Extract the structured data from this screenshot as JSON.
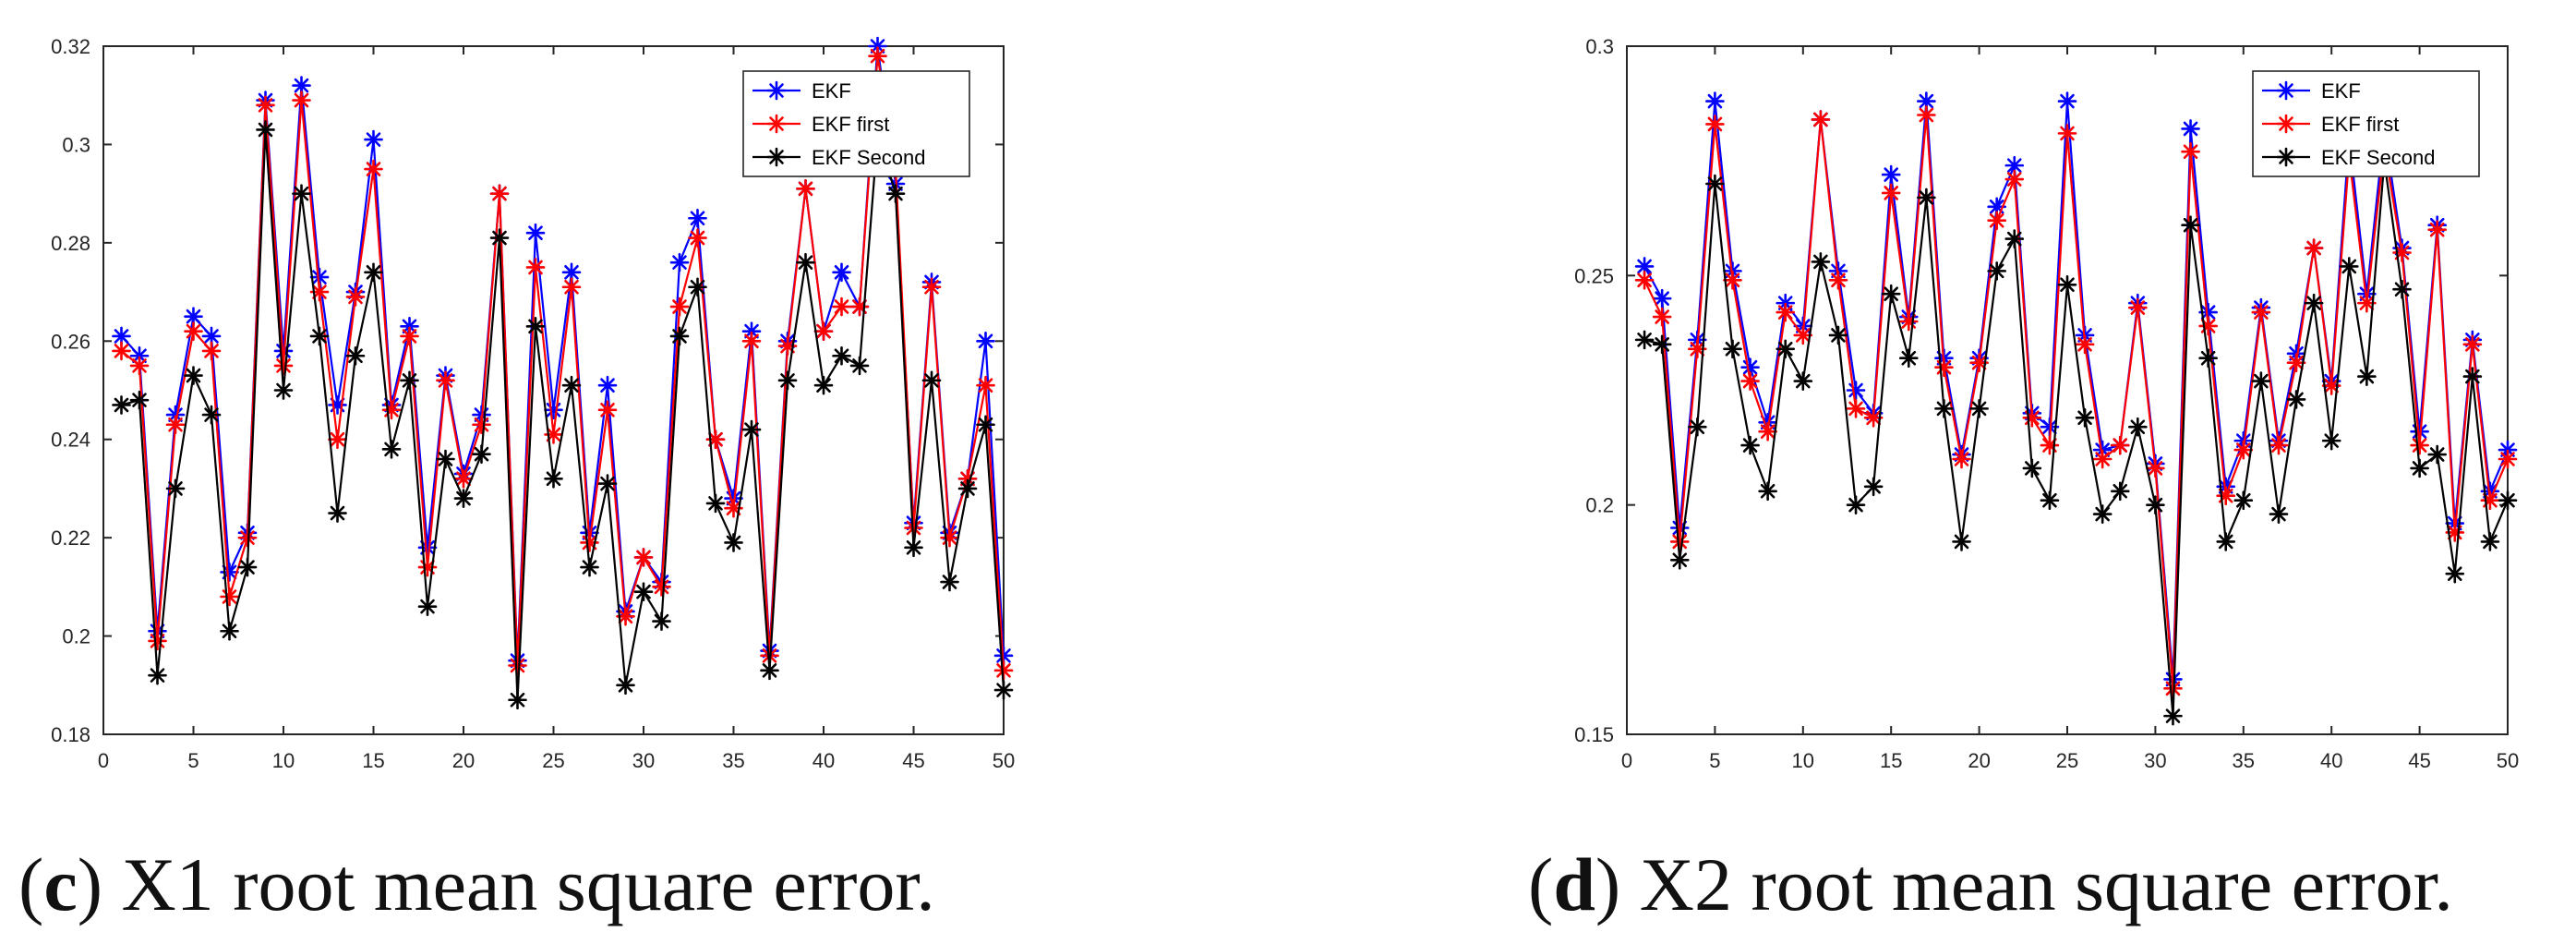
{
  "chart_data": [
    {
      "type": "line",
      "caption": {
        "letter": "c",
        "text": "X1 root mean square error."
      },
      "x": [
        1,
        2,
        3,
        4,
        5,
        6,
        7,
        8,
        9,
        10,
        11,
        12,
        13,
        14,
        15,
        16,
        17,
        18,
        19,
        20,
        21,
        22,
        23,
        24,
        25,
        26,
        27,
        28,
        29,
        30,
        31,
        32,
        33,
        34,
        35,
        36,
        37,
        38,
        39,
        40,
        41,
        42,
        43,
        44,
        45,
        46,
        47,
        48,
        49,
        50
      ],
      "xlim": [
        0,
        50
      ],
      "ylim": [
        0.18,
        0.32
      ],
      "xticks": [
        0,
        5,
        10,
        15,
        20,
        25,
        30,
        35,
        40,
        45,
        50
      ],
      "yticks": [
        0.18,
        0.2,
        0.22,
        0.24,
        0.26,
        0.28,
        0.3,
        0.32
      ],
      "xtick_labels": [
        "0",
        "5",
        "10",
        "15",
        "20",
        "25",
        "30",
        "35",
        "40",
        "45",
        "50"
      ],
      "ytick_labels": [
        "0.18",
        "0.2",
        "0.22",
        "0.24",
        "0.26",
        "0.28",
        "0.3",
        "0.32"
      ],
      "legend_position": "top-right",
      "series": [
        {
          "name": "EKF",
          "color": "#0000ff",
          "values": [
            0.261,
            0.257,
            0.201,
            0.245,
            0.265,
            0.261,
            0.213,
            0.221,
            0.309,
            0.258,
            0.312,
            0.273,
            0.247,
            0.27,
            0.301,
            0.247,
            0.263,
            0.218,
            0.253,
            0.233,
            0.245,
            0.29,
            0.195,
            0.282,
            0.246,
            0.274,
            0.221,
            0.251,
            0.205,
            0.216,
            0.211,
            0.276,
            0.285,
            0.24,
            0.228,
            0.262,
            0.197,
            0.26,
            0.291,
            0.262,
            0.274,
            0.267,
            0.32,
            0.292,
            0.223,
            0.272,
            0.221,
            0.232,
            0.26,
            0.196
          ]
        },
        {
          "name": "EKF first",
          "color": "#ff0000",
          "values": [
            0.258,
            0.255,
            0.199,
            0.243,
            0.262,
            0.258,
            0.208,
            0.22,
            0.308,
            0.255,
            0.309,
            0.27,
            0.24,
            0.269,
            0.295,
            0.246,
            0.261,
            0.214,
            0.252,
            0.232,
            0.243,
            0.29,
            0.194,
            0.275,
            0.241,
            0.271,
            0.219,
            0.246,
            0.204,
            0.216,
            0.21,
            0.267,
            0.281,
            0.24,
            0.226,
            0.26,
            0.196,
            0.259,
            0.291,
            0.262,
            0.267,
            0.267,
            0.318,
            0.295,
            0.222,
            0.271,
            0.22,
            0.232,
            0.251,
            0.193
          ]
        },
        {
          "name": "EKF Second",
          "color": "#000000",
          "values": [
            0.247,
            0.248,
            0.192,
            0.23,
            0.253,
            0.245,
            0.201,
            0.214,
            0.303,
            0.25,
            0.29,
            0.261,
            0.225,
            0.257,
            0.274,
            0.238,
            0.252,
            0.206,
            0.236,
            0.228,
            0.237,
            0.281,
            0.187,
            0.263,
            0.232,
            0.251,
            0.214,
            0.231,
            0.19,
            0.209,
            0.203,
            0.261,
            0.271,
            0.227,
            0.219,
            0.242,
            0.193,
            0.252,
            0.276,
            0.251,
            0.257,
            0.255,
            0.302,
            0.29,
            0.218,
            0.252,
            0.211,
            0.23,
            0.243,
            0.189
          ]
        }
      ]
    },
    {
      "type": "line",
      "caption": {
        "letter": "d",
        "text": "X2 root mean square error."
      },
      "x": [
        1,
        2,
        3,
        4,
        5,
        6,
        7,
        8,
        9,
        10,
        11,
        12,
        13,
        14,
        15,
        16,
        17,
        18,
        19,
        20,
        21,
        22,
        23,
        24,
        25,
        26,
        27,
        28,
        29,
        30,
        31,
        32,
        33,
        34,
        35,
        36,
        37,
        38,
        39,
        40,
        41,
        42,
        43,
        44,
        45,
        46,
        47,
        48,
        49,
        50
      ],
      "xlim": [
        0,
        50
      ],
      "ylim": [
        0.15,
        0.3
      ],
      "xticks": [
        0,
        5,
        10,
        15,
        20,
        25,
        30,
        35,
        40,
        45,
        50
      ],
      "yticks": [
        0.15,
        0.2,
        0.25,
        0.3
      ],
      "xtick_labels": [
        "0",
        "5",
        "10",
        "15",
        "20",
        "25",
        "30",
        "35",
        "40",
        "45",
        "50"
      ],
      "ytick_labels": [
        "0.15",
        "0.2",
        "0.25",
        "0.3"
      ],
      "legend_position": "top-right",
      "series": [
        {
          "name": "EKF",
          "color": "#0000ff",
          "values": [
            0.252,
            0.245,
            0.195,
            0.236,
            0.288,
            0.251,
            0.23,
            0.218,
            0.244,
            0.239,
            0.284,
            0.251,
            0.225,
            0.22,
            0.272,
            0.241,
            0.288,
            0.232,
            0.211,
            0.232,
            0.265,
            0.274,
            0.22,
            0.217,
            0.288,
            0.237,
            0.212,
            0.213,
            0.244,
            0.209,
            0.162,
            0.282,
            0.242,
            0.204,
            0.214,
            0.243,
            0.214,
            0.233,
            0.256,
            0.227,
            0.28,
            0.246,
            0.282,
            0.256,
            0.216,
            0.261,
            0.196,
            0.236,
            0.203,
            0.212
          ]
        },
        {
          "name": "EKF first",
          "color": "#ff0000",
          "values": [
            0.249,
            0.241,
            0.192,
            0.234,
            0.283,
            0.249,
            0.227,
            0.216,
            0.242,
            0.237,
            0.284,
            0.249,
            0.221,
            0.219,
            0.268,
            0.24,
            0.285,
            0.23,
            0.21,
            0.231,
            0.262,
            0.271,
            0.219,
            0.213,
            0.281,
            0.235,
            0.21,
            0.213,
            0.243,
            0.208,
            0.16,
            0.277,
            0.239,
            0.202,
            0.212,
            0.242,
            0.213,
            0.231,
            0.256,
            0.226,
            0.276,
            0.244,
            0.278,
            0.255,
            0.213,
            0.26,
            0.194,
            0.235,
            0.201,
            0.21
          ]
        },
        {
          "name": "EKF Second",
          "color": "#000000",
          "values": [
            0.236,
            0.235,
            0.188,
            0.217,
            0.27,
            0.234,
            0.213,
            0.203,
            0.234,
            0.227,
            0.253,
            0.237,
            0.2,
            0.204,
            0.246,
            0.232,
            0.267,
            0.221,
            0.192,
            0.221,
            0.251,
            0.258,
            0.208,
            0.201,
            0.248,
            0.219,
            0.198,
            0.203,
            0.217,
            0.2,
            0.154,
            0.261,
            0.232,
            0.192,
            0.201,
            0.227,
            0.198,
            0.223,
            0.244,
            0.214,
            0.252,
            0.228,
            0.275,
            0.247,
            0.208,
            0.211,
            0.185,
            0.228,
            0.192,
            0.201
          ]
        }
      ]
    }
  ]
}
